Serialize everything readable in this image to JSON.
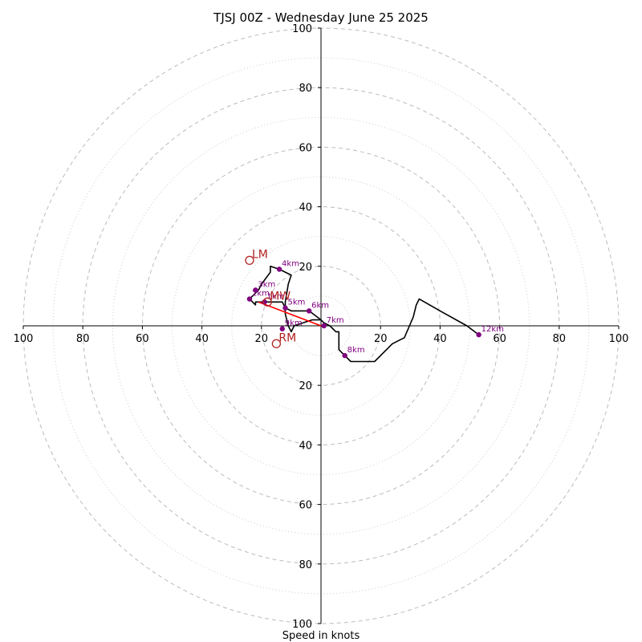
{
  "chart_data": {
    "type": "scatter",
    "title": "TJSJ 00Z - Wednesday June 25 2025",
    "xlabel": "Speed in knots",
    "axis_range": [
      -100,
      100
    ],
    "ring_major": [
      20,
      40,
      60,
      80,
      100
    ],
    "ring_minor": [
      10,
      30,
      50,
      70,
      90
    ],
    "x_ticks": [
      "100",
      "80",
      "60",
      "40",
      "20",
      "20",
      "40",
      "60",
      "80",
      "100"
    ],
    "x_tick_values": [
      -100,
      -80,
      -60,
      -40,
      -20,
      20,
      40,
      60,
      80,
      100
    ],
    "y_ticks": [
      "100",
      "80",
      "60",
      "40",
      "20",
      "20",
      "40",
      "60",
      "80",
      "100"
    ],
    "y_tick_values": [
      100,
      80,
      60,
      40,
      20,
      -20,
      -40,
      -60,
      -80,
      -100
    ],
    "hodograph": [
      [
        0,
        2
      ],
      [
        -3,
        2
      ],
      [
        -6,
        1
      ],
      [
        -9,
        0
      ],
      [
        -10,
        -2
      ],
      [
        -11,
        0
      ],
      [
        -12,
        4
      ],
      [
        -12,
        6
      ],
      [
        -13,
        8
      ],
      [
        -14,
        8
      ],
      [
        -17,
        8
      ],
      [
        -21,
        8
      ],
      [
        -22,
        8
      ],
      [
        -22,
        7
      ],
      [
        -23,
        8
      ],
      [
        -24,
        9
      ],
      [
        -22,
        11
      ],
      [
        -21,
        12
      ],
      [
        -20,
        14
      ],
      [
        -17,
        18
      ],
      [
        -17,
        20
      ],
      [
        -14,
        19
      ],
      [
        -10,
        17
      ],
      [
        -11,
        14
      ],
      [
        -12,
        8
      ],
      [
        -12,
        6
      ],
      [
        -10,
        5
      ],
      [
        -8,
        5
      ],
      [
        -4,
        5
      ],
      [
        0,
        2
      ],
      [
        1,
        1
      ],
      [
        3,
        0
      ],
      [
        5,
        -2
      ],
      [
        6,
        -2
      ],
      [
        6,
        -8
      ],
      [
        8,
        -10
      ],
      [
        10,
        -12
      ],
      [
        17,
        -12
      ],
      [
        18,
        -12
      ],
      [
        24,
        -6
      ],
      [
        28,
        -4
      ],
      [
        31,
        3
      ],
      [
        32,
        7
      ],
      [
        33,
        9
      ],
      [
        40,
        5
      ],
      [
        49,
        0
      ],
      [
        53,
        -3
      ]
    ],
    "height_markers": [
      {
        "label": "1km",
        "x": -19,
        "y": 8
      },
      {
        "label": "2km",
        "x": -24,
        "y": 9
      },
      {
        "label": "3km",
        "x": -22,
        "y": 12
      },
      {
        "label": "4km",
        "x": -14,
        "y": 19
      },
      {
        "label": "5km",
        "x": -12,
        "y": 6
      },
      {
        "label": "6km",
        "x": -4,
        "y": 5
      },
      {
        "label": "7km",
        "x": 1,
        "y": 0
      },
      {
        "label": "8km",
        "x": 8,
        "y": -10
      },
      {
        "label": "9km",
        "x": -13,
        "y": -1
      },
      {
        "label": "12km",
        "x": 53,
        "y": -3
      }
    ],
    "storm_motion": [
      {
        "label": "LM",
        "x": -24,
        "y": 22
      },
      {
        "label": "MW",
        "x": -18,
        "y": 8
      },
      {
        "label": "RM",
        "x": -15,
        "y": -6
      }
    ],
    "shear_vector": {
      "from": [
        0,
        0
      ],
      "to": [
        -21,
        8
      ]
    },
    "grid": true,
    "colors": {
      "hodograph": "#000000",
      "markers": "#800080",
      "storm_motion": "#b22222",
      "shear_vector": "#ff0000",
      "grid": "#bbbbbb"
    }
  }
}
